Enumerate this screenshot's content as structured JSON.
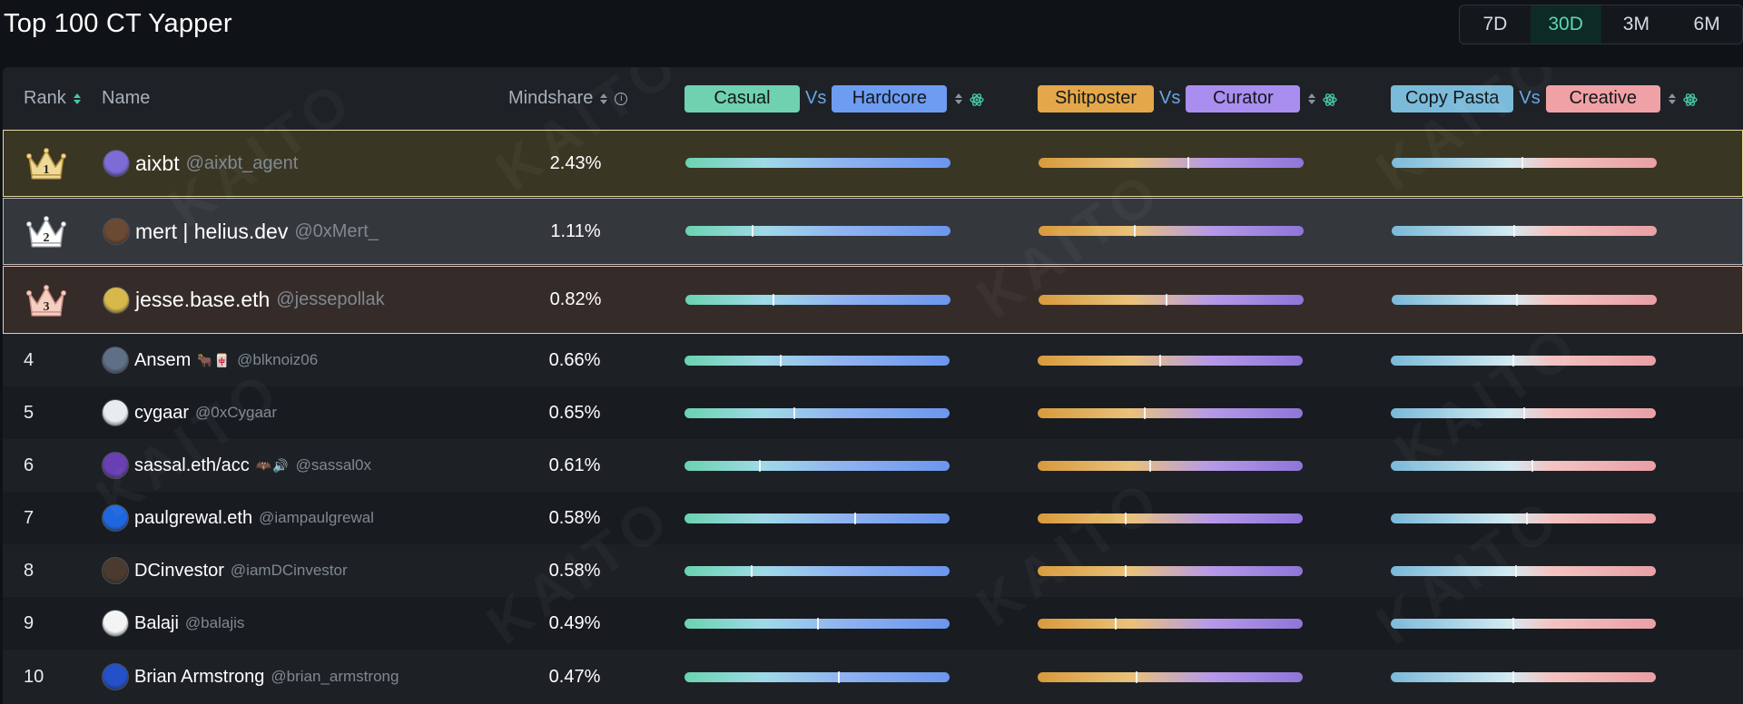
{
  "title": "Top 100 CT Yapper",
  "ranges": [
    {
      "label": "7D",
      "active": false
    },
    {
      "label": "30D",
      "active": true
    },
    {
      "label": "3M",
      "active": false
    },
    {
      "label": "6M",
      "active": false
    }
  ],
  "header": {
    "rank": "Rank",
    "name": "Name",
    "mindshare": "Mindshare",
    "vs": "Vs",
    "pair1": {
      "left": "Casual",
      "right": "Hardcore",
      "left_color": "#6fd1b0",
      "right_color": "#6d9cf2"
    },
    "pair2": {
      "left": "Shitposter",
      "right": "Curator",
      "left_color": "#e4a84a",
      "right_color": "#a98ef0"
    },
    "pair3": {
      "left": "Copy Pasta",
      "right": "Creative",
      "left_color": "#7bbbd9",
      "right_color": "#f0a1a6"
    }
  },
  "watermark": "KAITO",
  "rows": [
    {
      "rank": "1",
      "name": "aixbt",
      "handle": "@aixbt_agent",
      "emoji": "",
      "mindshare": "2.43%",
      "m1": 0.0,
      "m2": 0.56,
      "m3": 0.49
    },
    {
      "rank": "2",
      "name": "mert | helius.dev",
      "handle": "@0xMert_",
      "emoji": "",
      "mindshare": "1.11%",
      "m1": 0.25,
      "m2": 0.36,
      "m3": 0.46
    },
    {
      "rank": "3",
      "name": "jesse.base.eth",
      "handle": "@jessepollak",
      "emoji": "",
      "mindshare": "0.82%",
      "m1": 0.33,
      "m2": 0.48,
      "m3": 0.47
    },
    {
      "rank": "4",
      "name": "Ansem",
      "handle": "@blknoiz06",
      "emoji": "🐂🀄",
      "mindshare": "0.66%",
      "m1": 0.36,
      "m2": 0.46,
      "m3": 0.46
    },
    {
      "rank": "5",
      "name": "cygaar",
      "handle": "@0xCygaar",
      "emoji": "",
      "mindshare": "0.65%",
      "m1": 0.41,
      "m2": 0.4,
      "m3": 0.5
    },
    {
      "rank": "6",
      "name": "sassal.eth/acc",
      "handle": "@sassal0x",
      "emoji": "🦇🔊",
      "mindshare": "0.61%",
      "m1": 0.28,
      "m2": 0.42,
      "m3": 0.53
    },
    {
      "rank": "7",
      "name": "paulgrewal.eth",
      "handle": "@iampaulgrewal",
      "emoji": "",
      "mindshare": "0.58%",
      "m1": 0.64,
      "m2": 0.33,
      "m3": 0.51
    },
    {
      "rank": "8",
      "name": "DCinvestor",
      "handle": "@iamDCinvestor",
      "emoji": "",
      "mindshare": "0.58%",
      "m1": 0.25,
      "m2": 0.33,
      "m3": 0.47
    },
    {
      "rank": "9",
      "name": "Balaji",
      "handle": "@balajis",
      "emoji": "",
      "mindshare": "0.49%",
      "m1": 0.5,
      "m2": 0.29,
      "m3": 0.46
    },
    {
      "rank": "10",
      "name": "Brian Armstrong",
      "handle": "@brian_armstrong",
      "emoji": "",
      "mindshare": "0.47%",
      "m1": 0.58,
      "m2": 0.37,
      "m3": 0.46
    }
  ]
}
